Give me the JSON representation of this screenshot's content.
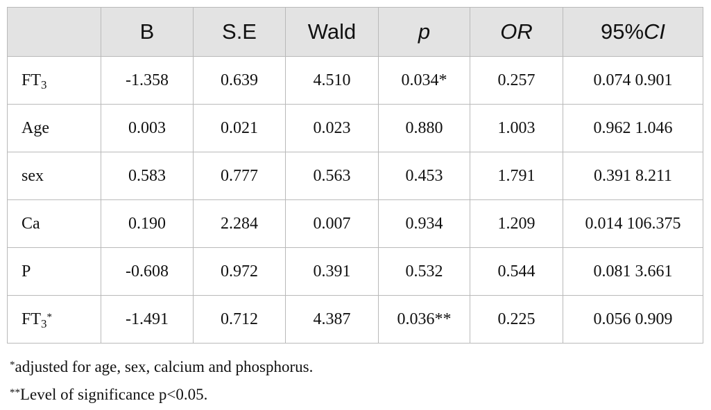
{
  "table": {
    "headers": [
      "",
      "B",
      "S.E",
      "Wald",
      "p",
      "OR",
      "95%CI"
    ],
    "rows": [
      {
        "label": "FT",
        "sub": "3",
        "mark": "",
        "cells": [
          "-1.358",
          "0.639",
          "4.510",
          "0.034*",
          "0.257",
          "0.074 0.901"
        ]
      },
      {
        "label": "Age",
        "sub": "",
        "mark": "",
        "cells": [
          "0.003",
          "0.021",
          "0.023",
          "0.880",
          "1.003",
          "0.962 1.046"
        ]
      },
      {
        "label": "sex",
        "sub": "",
        "mark": "",
        "cells": [
          "0.583",
          "0.777",
          "0.563",
          "0.453",
          "1.791",
          "0.391 8.211"
        ]
      },
      {
        "label": "Ca",
        "sub": "",
        "mark": "",
        "cells": [
          "0.190",
          "2.284",
          "0.007",
          "0.934",
          "1.209",
          "0.014 106.375"
        ]
      },
      {
        "label": "P",
        "sub": "",
        "mark": "",
        "cells": [
          "-0.608",
          "0.972",
          "0.391",
          "0.532",
          "0.544",
          "0.081 3.661"
        ]
      },
      {
        "label": "FT",
        "sub": "3",
        "mark": "*",
        "cells": [
          "-1.491",
          "0.712",
          "4.387",
          "0.036**",
          "0.225",
          "0.056 0.909"
        ]
      }
    ]
  },
  "footnotes": [
    {
      "mark": "*",
      "text": "adjusted for age, sex, calcium and phosphorus."
    },
    {
      "mark": "**",
      "text": "Level of significance p<0.05."
    }
  ]
}
